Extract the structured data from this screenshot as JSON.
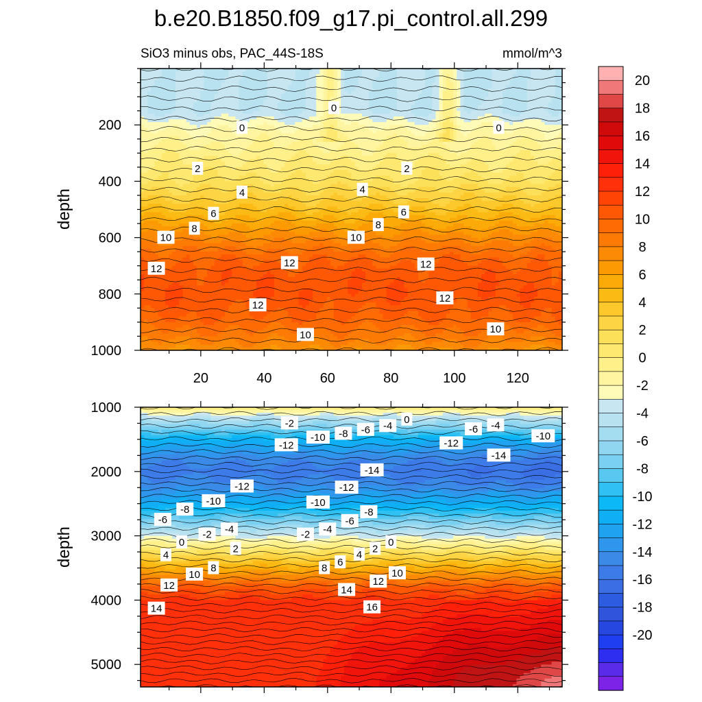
{
  "title": "b.e20.B1850.f09_g17.pi_control.all.299",
  "subtitle": "SiO3 minus obs, PAC_44S-18S",
  "units": "mmol/m^3",
  "chart_data": {
    "type": "contour",
    "variable": "SiO3 minus obs",
    "region": "PAC_44S-18S",
    "units": "mmol/m^3",
    "colorbar": {
      "levels": [
        -21,
        -20,
        -19,
        -18,
        -17,
        -16,
        -15,
        -14,
        -13,
        -12,
        -11,
        -10,
        -9,
        -8,
        -7,
        -6,
        -5,
        -4,
        -3,
        -2,
        -1,
        0,
        1,
        2,
        3,
        4,
        5,
        6,
        7,
        8,
        9,
        10,
        11,
        12,
        13,
        14,
        15,
        16,
        17,
        18,
        19,
        20,
        21
      ],
      "colors": [
        "#7d23e8",
        "#5a2be8",
        "#2e2ef0",
        "#1e3ef0",
        "#2748e0",
        "#3054dc",
        "#2e5ce0",
        "#3b6ee3",
        "#3d7ce8",
        "#3b8ae8",
        "#2e96ec",
        "#1fa2f0",
        "#10aef5",
        "#0cb8f5",
        "#30c0f2",
        "#58c8f0",
        "#7ad0f0",
        "#90d6f0",
        "#a4dcf0",
        "#b8e2f0",
        "#c8e6f2",
        "#fefbb8",
        "#fff5a0",
        "#fff08a",
        "#ffe870",
        "#fde05a",
        "#fdd544",
        "#fcc82c",
        "#fbba14",
        "#fcaa08",
        "#fc9a04",
        "#fd8a04",
        "#fd7a04",
        "#fe6a04",
        "#fe5804",
        "#ff4406",
        "#ff300a",
        "#ff200a",
        "#f0140a",
        "#e00a0a",
        "#d00a0a",
        "#c01414",
        "#e04848",
        "#f07878",
        "#ffb0b0"
      ],
      "tick_labels": [
        "20",
        "18",
        "16",
        "14",
        "12",
        "10",
        "8",
        "6",
        "4",
        "2",
        "0",
        "-2",
        "-4",
        "-6",
        "-8",
        "-10",
        "-12",
        "-14",
        "-16",
        "-18",
        "-20"
      ]
    },
    "panels": [
      {
        "id": "upper",
        "xlabel": "",
        "ylabel": "depth",
        "xlim": [
          1,
          134
        ],
        "ylim": [
          0,
          1000
        ],
        "y_inverted": true,
        "x_ticks": [
          "20",
          "40",
          "60",
          "80",
          "100",
          "120"
        ],
        "y_ticks": [
          "200",
          "400",
          "600",
          "800",
          "1000"
        ],
        "depth_levels_m": [
          0,
          50,
          200,
          275,
          350,
          420,
          500,
          560,
          620,
          680,
          780,
          860,
          920,
          1000
        ],
        "band_values": [
          -1,
          0.3,
          1,
          2,
          3.5,
          5,
          6.5,
          8,
          10,
          12,
          13,
          11,
          10
        ],
        "contour_labels": [
          {
            "text": "0",
            "x": 33,
            "depth": 210
          },
          {
            "text": "0",
            "x": 62,
            "depth": 140
          },
          {
            "text": "0",
            "x": 114,
            "depth": 210
          },
          {
            "text": "2",
            "x": 19,
            "depth": 355
          },
          {
            "text": "2",
            "x": 85,
            "depth": 355
          },
          {
            "text": "4",
            "x": 33,
            "depth": 440
          },
          {
            "text": "4",
            "x": 71,
            "depth": 430
          },
          {
            "text": "6",
            "x": 24,
            "depth": 515
          },
          {
            "text": "6",
            "x": 84,
            "depth": 510
          },
          {
            "text": "8",
            "x": 18,
            "depth": 568
          },
          {
            "text": "8",
            "x": 76,
            "depth": 555
          },
          {
            "text": "10",
            "x": 9,
            "depth": 600
          },
          {
            "text": "10",
            "x": 69,
            "depth": 600
          },
          {
            "text": "12",
            "x": 6,
            "depth": 710
          },
          {
            "text": "12",
            "x": 48,
            "depth": 690
          },
          {
            "text": "12",
            "x": 91,
            "depth": 695
          },
          {
            "text": "12",
            "x": 38,
            "depth": 840
          },
          {
            "text": "12",
            "x": 97,
            "depth": 815
          },
          {
            "text": "10",
            "x": 53,
            "depth": 945
          },
          {
            "text": "10",
            "x": 113,
            "depth": 925
          }
        ]
      },
      {
        "id": "lower",
        "xlabel": "",
        "ylabel": "depth",
        "xlim": [
          1,
          134
        ],
        "ylim": [
          1000,
          5350
        ],
        "y_inverted": true,
        "x_ticks": [
          "20",
          "40",
          "60",
          "80",
          "100",
          "120"
        ],
        "y_ticks": [
          "1000",
          "2000",
          "3000",
          "4000",
          "5000"
        ],
        "contour_labels": [
          {
            "text": "-2",
            "x": 48,
            "depth": 1250
          },
          {
            "text": "0",
            "x": 85,
            "depth": 1190
          },
          {
            "text": "-4",
            "x": 79,
            "depth": 1290
          },
          {
            "text": "-6",
            "x": 72,
            "depth": 1350
          },
          {
            "text": "-8",
            "x": 65,
            "depth": 1410
          },
          {
            "text": "-10",
            "x": 57,
            "depth": 1470
          },
          {
            "text": "-12",
            "x": 47,
            "depth": 1590
          },
          {
            "text": "-6",
            "x": 106,
            "depth": 1340
          },
          {
            "text": "-4",
            "x": 113,
            "depth": 1280
          },
          {
            "text": "-10",
            "x": 128,
            "depth": 1450
          },
          {
            "text": "-12",
            "x": 99,
            "depth": 1560
          },
          {
            "text": "-14",
            "x": 114,
            "depth": 1750
          },
          {
            "text": "-14",
            "x": 74,
            "depth": 1980
          },
          {
            "text": "-12",
            "x": 33,
            "depth": 2230
          },
          {
            "text": "-12",
            "x": 66,
            "depth": 2250
          },
          {
            "text": "-10",
            "x": 24,
            "depth": 2460
          },
          {
            "text": "-10",
            "x": 57,
            "depth": 2480
          },
          {
            "text": "-8",
            "x": 15,
            "depth": 2590
          },
          {
            "text": "-8",
            "x": 73,
            "depth": 2630
          },
          {
            "text": "-6",
            "x": 8,
            "depth": 2750
          },
          {
            "text": "-6",
            "x": 67,
            "depth": 2770
          },
          {
            "text": "-4",
            "x": 29,
            "depth": 2900
          },
          {
            "text": "-4",
            "x": 60,
            "depth": 2900
          },
          {
            "text": "-2",
            "x": 22,
            "depth": 2980
          },
          {
            "text": "-2",
            "x": 53,
            "depth": 2980
          },
          {
            "text": "0",
            "x": 14,
            "depth": 3100
          },
          {
            "text": "0",
            "x": 80,
            "depth": 3100
          },
          {
            "text": "2",
            "x": 31,
            "depth": 3200
          },
          {
            "text": "2",
            "x": 75,
            "depth": 3200
          },
          {
            "text": "4",
            "x": 9,
            "depth": 3300
          },
          {
            "text": "4",
            "x": 70,
            "depth": 3290
          },
          {
            "text": "6",
            "x": 64,
            "depth": 3410
          },
          {
            "text": "8",
            "x": 24,
            "depth": 3500
          },
          {
            "text": "8",
            "x": 59,
            "depth": 3500
          },
          {
            "text": "10",
            "x": 18,
            "depth": 3600
          },
          {
            "text": "10",
            "x": 82,
            "depth": 3580
          },
          {
            "text": "12",
            "x": 10,
            "depth": 3770
          },
          {
            "text": "12",
            "x": 76,
            "depth": 3710
          },
          {
            "text": "14",
            "x": 66,
            "depth": 3840
          },
          {
            "text": "14",
            "x": 6,
            "depth": 4130
          },
          {
            "text": "16",
            "x": 74,
            "depth": 4110
          }
        ]
      }
    ]
  }
}
